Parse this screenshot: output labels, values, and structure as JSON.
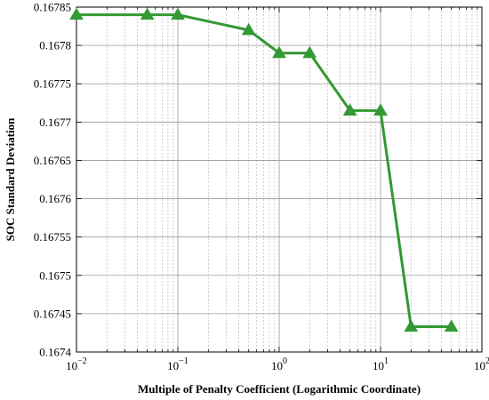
{
  "chart_data": {
    "type": "line",
    "title": "",
    "xlabel": "Multiple of Penalty Coefficient (Logarithmic Coordinate)",
    "ylabel": "SOC Standard Deviation",
    "x_scale": "log",
    "xlim": [
      0.01,
      100
    ],
    "ylim": [
      0.1674,
      0.16785
    ],
    "grid": true,
    "x_ticks": [
      {
        "value": 0.01,
        "base": "10",
        "exp": "−2"
      },
      {
        "value": 0.1,
        "base": "10",
        "exp": "−1"
      },
      {
        "value": 1,
        "base": "10",
        "exp": "0"
      },
      {
        "value": 10,
        "base": "10",
        "exp": "1"
      },
      {
        "value": 100,
        "base": "10",
        "exp": "2"
      }
    ],
    "y_ticks": [
      "0.1674",
      "0.16745",
      "0.1675",
      "0.16755",
      "0.1676",
      "0.16765",
      "0.1677",
      "0.16775",
      "0.1678",
      "0.16785"
    ],
    "series": [
      {
        "color": "#339933",
        "marker": "triangle",
        "x": [
          0.01,
          0.05,
          0.1,
          0.5,
          1,
          2,
          5,
          10,
          20,
          50
        ],
        "y": [
          0.16784,
          0.16784,
          0.16784,
          0.16782,
          0.16779,
          0.16779,
          0.167715,
          0.167715,
          0.167433,
          0.167433
        ]
      }
    ]
  }
}
